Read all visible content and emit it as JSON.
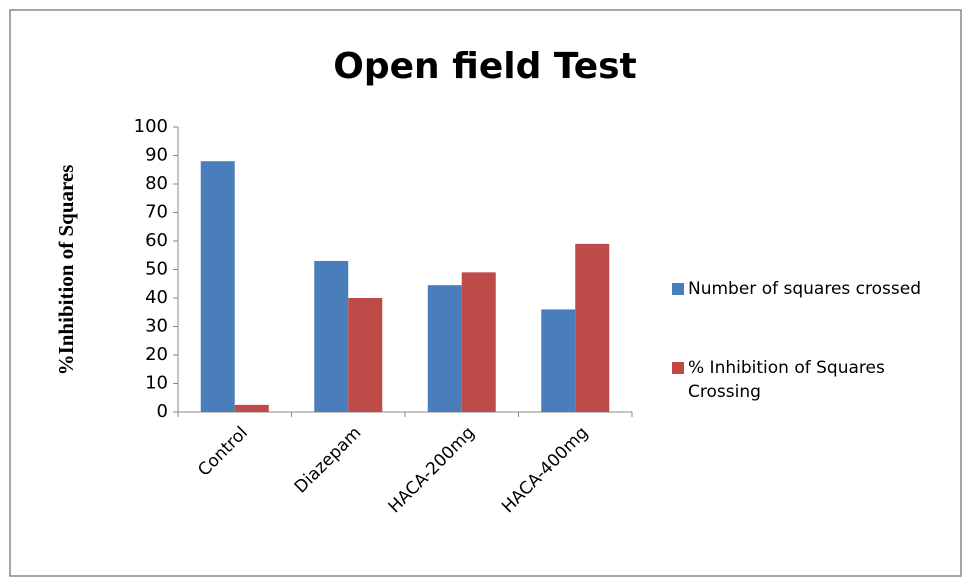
{
  "chart_data": {
    "type": "bar",
    "title": "Open field Test",
    "y_label": "%Inhibition of Squares",
    "categories": [
      "Control",
      "Diazepam",
      "HACA-200mg",
      "HACA-400mg"
    ],
    "series": [
      {
        "name": "Number of squares crossed",
        "color": "#4a7ebb",
        "values": [
          88,
          53,
          44.5,
          36
        ]
      },
      {
        "name": "% Inhibition of Squares Crossing",
        "color": "#be4b48",
        "values": [
          2.5,
          40,
          49,
          59
        ]
      }
    ],
    "ylim": [
      0,
      100
    ],
    "yticks": [
      0,
      10,
      20,
      30,
      40,
      50,
      60,
      70,
      80,
      90,
      100
    ],
    "legend": "right"
  }
}
